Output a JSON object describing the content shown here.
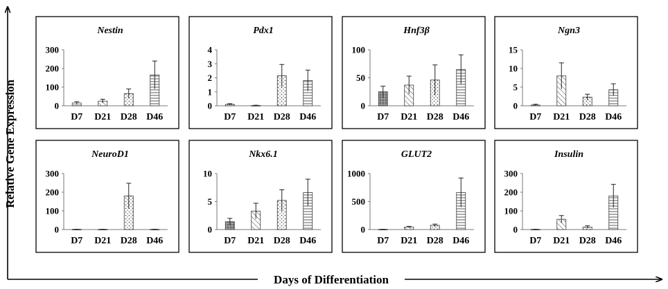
{
  "figure": {
    "x_axis_title": "Days of Differentiation",
    "y_axis_title": "Relative Gene Expression"
  },
  "colors": {
    "border": "#000000",
    "bar_stroke": "#3a3a3a",
    "dark_fill": "#8c8c8c",
    "pattern_ink": "#5a5a5a"
  },
  "chart_data": [
    {
      "type": "bar",
      "title": "Nestin",
      "categories": [
        "D7",
        "D21",
        "D28",
        "D46"
      ],
      "values": [
        15,
        25,
        65,
        165
      ],
      "errors": [
        7,
        10,
        25,
        75
      ],
      "yticks": [
        0,
        100,
        200,
        300
      ],
      "ylim": [
        0,
        300
      ],
      "fills": [
        "dots-dense",
        "diagonal",
        "dots",
        "horizontal"
      ]
    },
    {
      "type": "bar",
      "title": "Pdx1",
      "categories": [
        "D7",
        "D21",
        "D28",
        "D46"
      ],
      "values": [
        0.1,
        0.02,
        2.15,
        1.8
      ],
      "errors": [
        0.05,
        0.02,
        0.8,
        0.75
      ],
      "yticks": [
        0,
        1,
        2,
        3,
        4
      ],
      "ylim": [
        0,
        4
      ],
      "fills": [
        "dots-dense",
        "diagonal",
        "dots",
        "horizontal"
      ]
    },
    {
      "type": "bar",
      "title": "Hnf3β",
      "categories": [
        "D7",
        "D21",
        "D28",
        "D46"
      ],
      "values": [
        25,
        37,
        46,
        65
      ],
      "errors": [
        10,
        16,
        27,
        26
      ],
      "yticks": [
        0,
        50,
        100
      ],
      "ylim": [
        0,
        100
      ],
      "fills": [
        "dark-dots",
        "diagonal",
        "dots",
        "horizontal"
      ]
    },
    {
      "type": "bar",
      "title": "Ngn3",
      "categories": [
        "D7",
        "D21",
        "D28",
        "D46"
      ],
      "values": [
        0.2,
        8,
        2.3,
        4.3
      ],
      "errors": [
        0.2,
        3.5,
        0.8,
        1.6
      ],
      "yticks": [
        0,
        5,
        10,
        15
      ],
      "ylim": [
        0,
        15
      ],
      "fills": [
        "dots-dense",
        "diagonal",
        "dots",
        "horizontal"
      ]
    },
    {
      "type": "bar",
      "title": "NeuroD1",
      "categories": [
        "D7",
        "D21",
        "D28",
        "D46"
      ],
      "values": [
        1,
        1,
        180,
        1
      ],
      "errors": [
        0.5,
        0.5,
        68,
        0.5
      ],
      "yticks": [
        0,
        100,
        200,
        300
      ],
      "ylim": [
        0,
        300
      ],
      "fills": [
        "dots-dense",
        "diagonal",
        "dots",
        "horizontal"
      ]
    },
    {
      "type": "bar",
      "title": "Nkx6.1",
      "categories": [
        "D7",
        "D21",
        "D28",
        "D46"
      ],
      "values": [
        1.4,
        3.3,
        5.2,
        6.6
      ],
      "errors": [
        0.6,
        1.4,
        1.9,
        2.4
      ],
      "yticks": [
        0,
        5,
        10
      ],
      "ylim": [
        0,
        10
      ],
      "fills": [
        "dark-dots",
        "diagonal",
        "dots",
        "horizontal"
      ]
    },
    {
      "type": "bar",
      "title": "GLUT2",
      "categories": [
        "D7",
        "D21",
        "D28",
        "D46"
      ],
      "values": [
        3,
        45,
        75,
        660
      ],
      "errors": [
        2,
        12,
        22,
        260
      ],
      "yticks": [
        0,
        500,
        1000
      ],
      "ylim": [
        0,
        1000
      ],
      "fills": [
        "dots-dense",
        "diagonal",
        "dots",
        "horizontal"
      ]
    },
    {
      "type": "bar",
      "title": "Insulin",
      "categories": [
        "D7",
        "D21",
        "D28",
        "D46"
      ],
      "values": [
        1,
        55,
        13,
        180
      ],
      "errors": [
        0.5,
        20,
        7,
        62
      ],
      "yticks": [
        0,
        100,
        200,
        300
      ],
      "ylim": [
        0,
        300
      ],
      "fills": [
        "dots-dense",
        "diagonal",
        "dots",
        "horizontal"
      ]
    }
  ]
}
